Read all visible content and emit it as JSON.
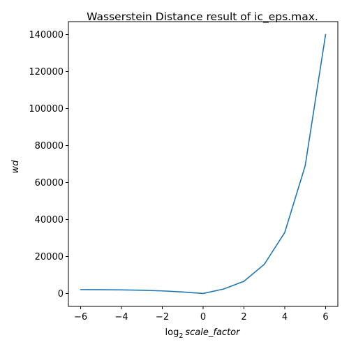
{
  "chart_data": {
    "type": "line",
    "title": "Wasserstein Distance result of ic_eps.max.",
    "xlabel_prefix": "log",
    "xlabel_subscript": "2",
    "xlabel_var": "scale_factor",
    "ylabel": "wd",
    "xlim": [
      -6.6,
      6.6
    ],
    "ylim": [
      -7000,
      147000
    ],
    "xticks": [
      -6,
      -4,
      -2,
      0,
      2,
      4,
      6
    ],
    "xtick_labels": [
      "−6",
      "−4",
      "−2",
      "0",
      "2",
      "4",
      "6"
    ],
    "yticks": [
      0,
      20000,
      40000,
      60000,
      80000,
      100000,
      120000,
      140000
    ],
    "ytick_labels": [
      "0",
      "20000",
      "40000",
      "60000",
      "80000",
      "100000",
      "120000",
      "140000"
    ],
    "grid": false,
    "series": [
      {
        "color": "#1f77b4",
        "x": [
          -6,
          -5,
          -4,
          -3,
          -2,
          -1,
          0,
          1,
          2,
          3,
          4,
          5,
          6
        ],
        "y": [
          2100,
          2050,
          1950,
          1750,
          1400,
          800,
          0,
          2400,
          6600,
          15800,
          33000,
          69000,
          140000
        ]
      }
    ]
  }
}
